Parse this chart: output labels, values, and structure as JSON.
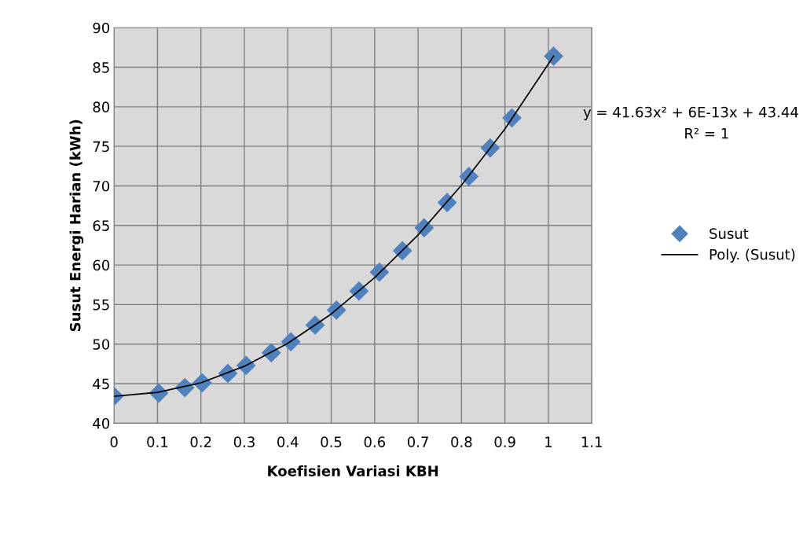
{
  "chart_data": {
    "type": "scatter",
    "xlabel": "Koefisien Variasi KBH",
    "ylabel": "Susut Energi Harian (kWh)",
    "series": [
      {
        "name": "Susut",
        "color": "#4f81bd",
        "marker": "diamond",
        "x": [
          0,
          0.103,
          0.163,
          0.203,
          0.262,
          0.304,
          0.362,
          0.407,
          0.463,
          0.512,
          0.564,
          0.611,
          0.664,
          0.714,
          0.767,
          0.817,
          0.866,
          0.916,
          1.012
        ],
        "values": [
          43.4,
          43.8,
          44.5,
          45.1,
          46.3,
          47.3,
          48.9,
          50.3,
          52.4,
          54.3,
          56.7,
          59.1,
          61.8,
          64.7,
          67.9,
          71.2,
          74.8,
          78.6,
          86.4
        ]
      },
      {
        "name": "Poly. (Susut)",
        "type": "line",
        "color": "#000000",
        "line_style": "solid",
        "x": [
          0,
          0.1,
          0.2,
          0.3,
          0.4,
          0.5,
          0.6,
          0.7,
          0.8,
          0.9,
          1.012
        ],
        "values": [
          43.4,
          43.9,
          45.1,
          47.2,
          50.1,
          53.8,
          58.4,
          63.8,
          70.1,
          77.2,
          86.4
        ]
      }
    ],
    "xlim": [
      0,
      1.1
    ],
    "xticks": [
      0,
      0.1,
      0.2,
      0.3,
      0.4,
      0.5,
      0.6,
      0.7,
      0.8,
      0.9,
      1,
      1.1
    ],
    "ylim": [
      40,
      90
    ],
    "yticks": [
      40,
      45,
      50,
      55,
      60,
      65,
      70,
      75,
      80,
      85,
      90
    ],
    "grid": true,
    "legend": "right",
    "annotations": [
      "y = 41.63x² + 6E-13x + 43.44",
      "R² = 1"
    ]
  }
}
